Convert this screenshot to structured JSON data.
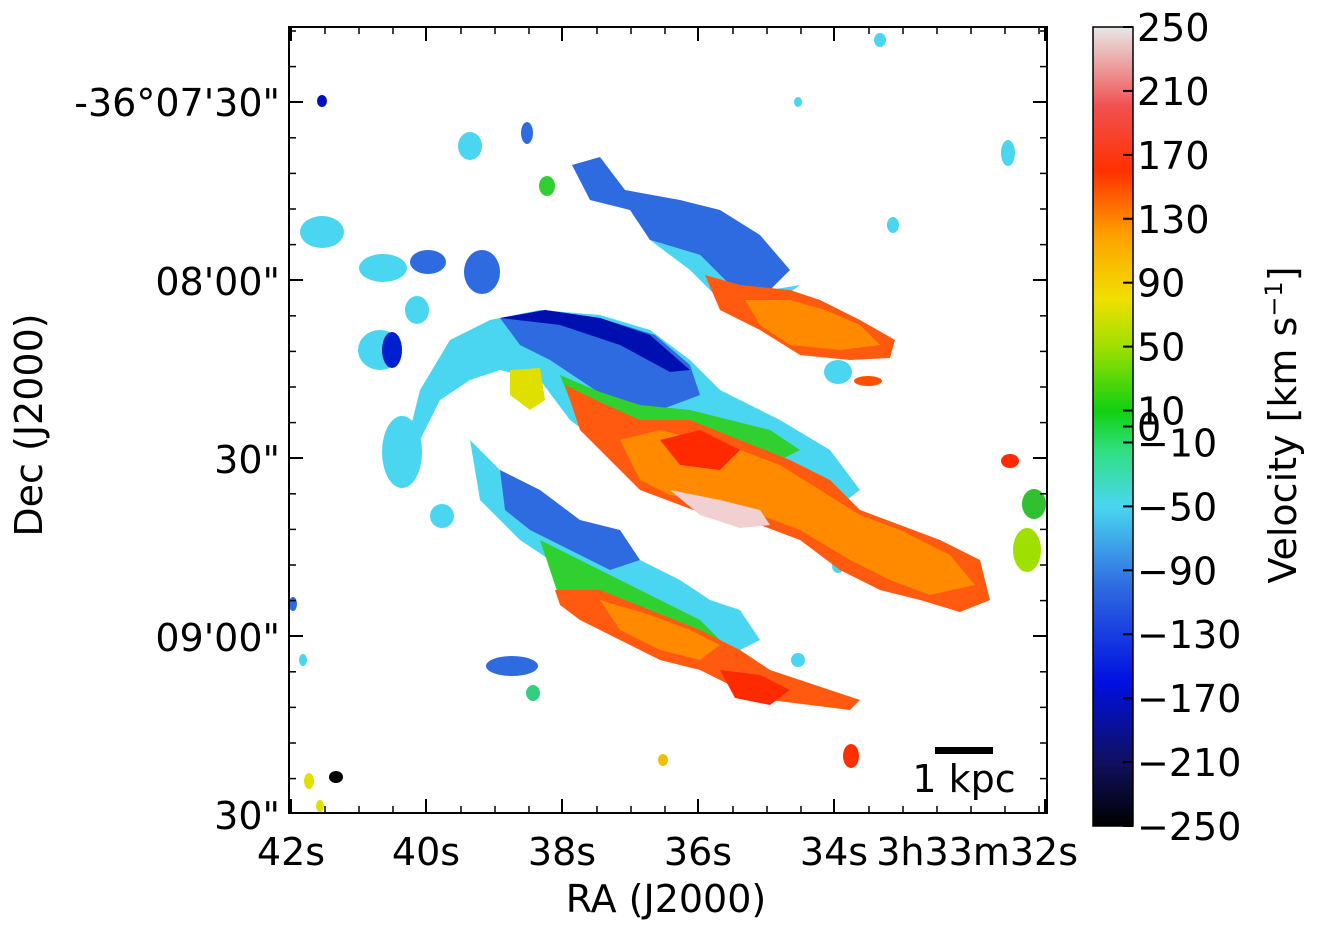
{
  "chart_data": {
    "type": "heatmap",
    "xlabel": "RA (J2000)",
    "ylabel": "Dec (J2000)",
    "x_ticks": [
      "42s",
      "40s",
      "38s",
      "36s",
      "34s",
      "3h33m32s"
    ],
    "y_ticks": [
      "-36°07'30\"",
      "08'00\"",
      "30\"",
      "09'00\"",
      "30\""
    ],
    "colorbar": {
      "label": "Velocity [km s",
      "label_sup": "−1",
      "label_close": "]",
      "range": [
        -250,
        250
      ],
      "ticks": [
        "250",
        "210",
        "170",
        "130",
        "90",
        "50",
        "10",
        "0",
        "−10",
        "−50",
        "−90",
        "−130",
        "−170",
        "−210",
        "−250"
      ],
      "tick_values": [
        250,
        210,
        170,
        130,
        90,
        50,
        10,
        0,
        -10,
        -50,
        -90,
        -130,
        -170,
        -210,
        -250
      ]
    },
    "scale_bar_label": "1 kpc",
    "beam": "ellipse"
  },
  "colors": {
    "blue": "#2f6be0",
    "cyan": "#4ad6f0",
    "green": "#30d030",
    "yellow": "#f0e000",
    "orange": "#ff8a00",
    "red": "#ff2a00"
  }
}
